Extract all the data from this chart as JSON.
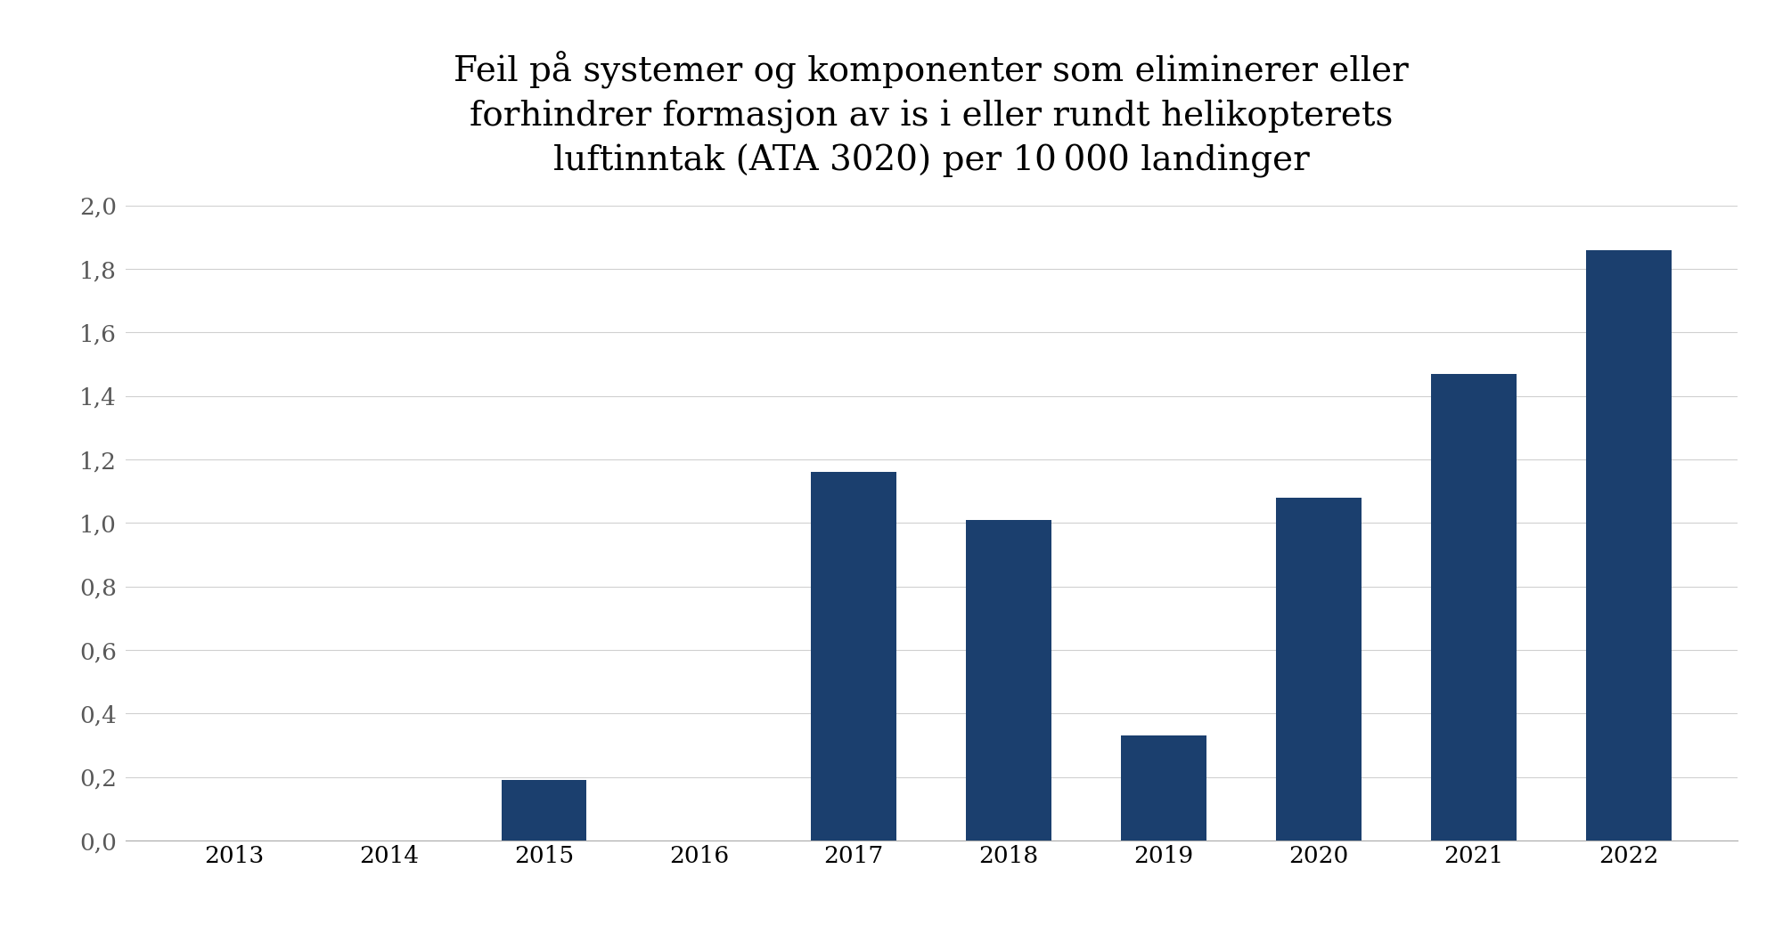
{
  "title_line1": "Feil på systemer og komponenter som eliminerer eller",
  "title_line2": "forhindrer formasjon av is i eller rundt helikopterets",
  "title_line3": "luftinntak (ATA 3020) per 10 000 landinger",
  "categories": [
    "2013",
    "2014",
    "2015",
    "2016",
    "2017",
    "2018",
    "2019",
    "2020",
    "2021",
    "2022"
  ],
  "values": [
    0.0,
    0.0,
    0.19,
    0.0,
    1.16,
    1.01,
    0.33,
    1.08,
    1.47,
    1.86
  ],
  "bar_color": "#1b3f6e",
  "ylim": [
    0,
    2.0
  ],
  "yticks": [
    0.0,
    0.2,
    0.4,
    0.6,
    0.8,
    1.0,
    1.2,
    1.4,
    1.6,
    1.8,
    2.0
  ],
  "ytick_labels": [
    "0,0",
    "0,2",
    "0,4",
    "0,6",
    "0,8",
    "1,0",
    "1,2",
    "1,4",
    "1,6",
    "1,8",
    "2,0"
  ],
  "background_color": "#ffffff",
  "title_fontsize": 28,
  "tick_fontsize": 19,
  "xtick_fontsize": 19,
  "bar_width": 0.55,
  "ytick_color": "#595959",
  "xtick_color": "#000000",
  "grid_color": "#d0d0d0",
  "title_color": "#000000"
}
